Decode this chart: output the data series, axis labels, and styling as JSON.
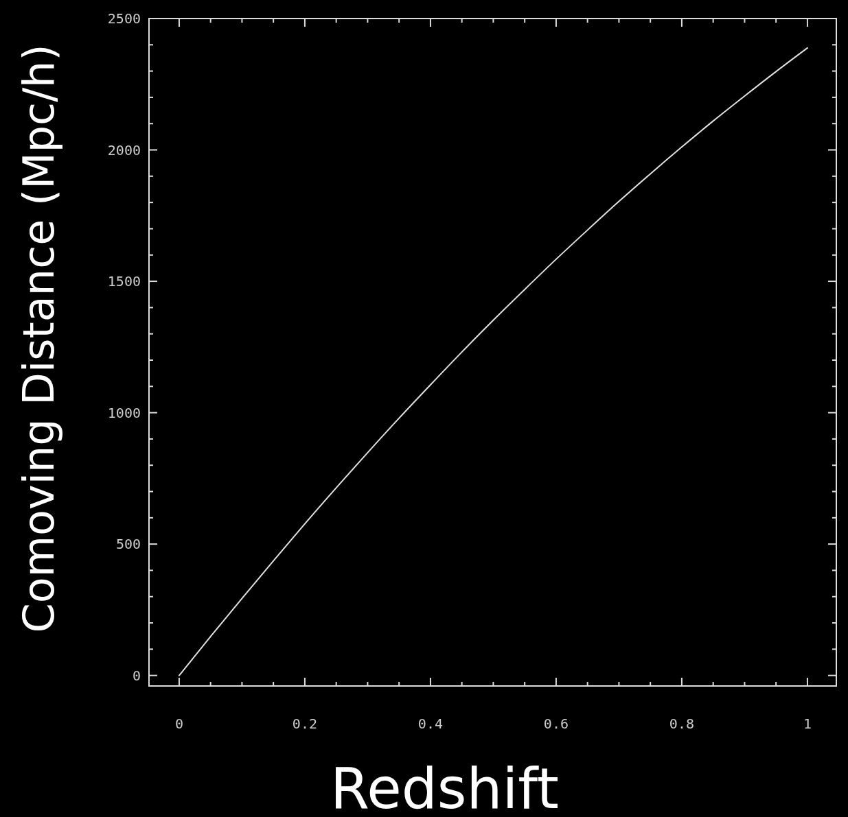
{
  "chart_data": {
    "type": "line",
    "xlabel": "Redshift",
    "ylabel": "Comoving Distance (Mpc/h)",
    "x": [
      0,
      0.05,
      0.1,
      0.15,
      0.2,
      0.25,
      0.3,
      0.35,
      0.4,
      0.45,
      0.5,
      0.55,
      0.6,
      0.65,
      0.7,
      0.75,
      0.8,
      0.85,
      0.9,
      0.95,
      1
    ],
    "series": [
      {
        "color": "#e0e0e0",
        "values": [
          0,
          148,
          293,
          436,
          577,
          714,
          848,
          979,
          1106,
          1231,
          1352,
          1469,
          1584,
          1695,
          1804,
          1909,
          2011,
          2110,
          2205,
          2298,
          2388
        ]
      }
    ],
    "xlim": [
      -0.048,
      1.046
    ],
    "ylim": [
      -40,
      2500
    ],
    "xticks": [
      0,
      {
        "value": 0.05,
        "label": null
      },
      {
        "value": 0.1,
        "label": null
      },
      {
        "value": 0.15,
        "label": null
      },
      0.2,
      {
        "value": 0.25,
        "label": null
      },
      {
        "value": 0.3,
        "label": null
      },
      {
        "value": 0.35,
        "label": null
      },
      0.4,
      {
        "value": 0.45,
        "label": null
      },
      {
        "value": 0.5,
        "label": null
      },
      {
        "value": 0.55,
        "label": null
      },
      0.6,
      {
        "value": 0.65,
        "label": null
      },
      {
        "value": 0.7,
        "label": null
      },
      {
        "value": 0.75,
        "label": null
      },
      0.8,
      {
        "value": 0.85,
        "label": null
      },
      {
        "value": 0.9,
        "label": null
      },
      {
        "value": 0.95,
        "label": null
      },
      1
    ],
    "yticks": [
      0,
      {
        "value": 100,
        "label": null
      },
      {
        "value": 200,
        "label": null
      },
      {
        "value": 300,
        "label": null
      },
      {
        "value": 400,
        "label": null
      },
      500,
      {
        "value": 600,
        "label": null
      },
      {
        "value": 700,
        "label": null
      },
      {
        "value": 800,
        "label": null
      },
      {
        "value": 900,
        "label": null
      },
      1000,
      {
        "value": 1100,
        "label": null
      },
      {
        "value": 1200,
        "label": null
      },
      {
        "value": 1300,
        "label": null
      },
      {
        "value": 1400,
        "label": null
      },
      1500,
      {
        "value": 1600,
        "label": null
      },
      {
        "value": 1700,
        "label": null
      },
      {
        "value": 1800,
        "label": null
      },
      {
        "value": 1900,
        "label": null
      },
      2000,
      {
        "value": 2100,
        "label": null
      },
      {
        "value": 2200,
        "label": null
      },
      {
        "value": 2300,
        "label": null
      },
      {
        "value": 2400,
        "label": null
      },
      2500
    ],
    "marker": "none",
    "line_style": "solid"
  }
}
